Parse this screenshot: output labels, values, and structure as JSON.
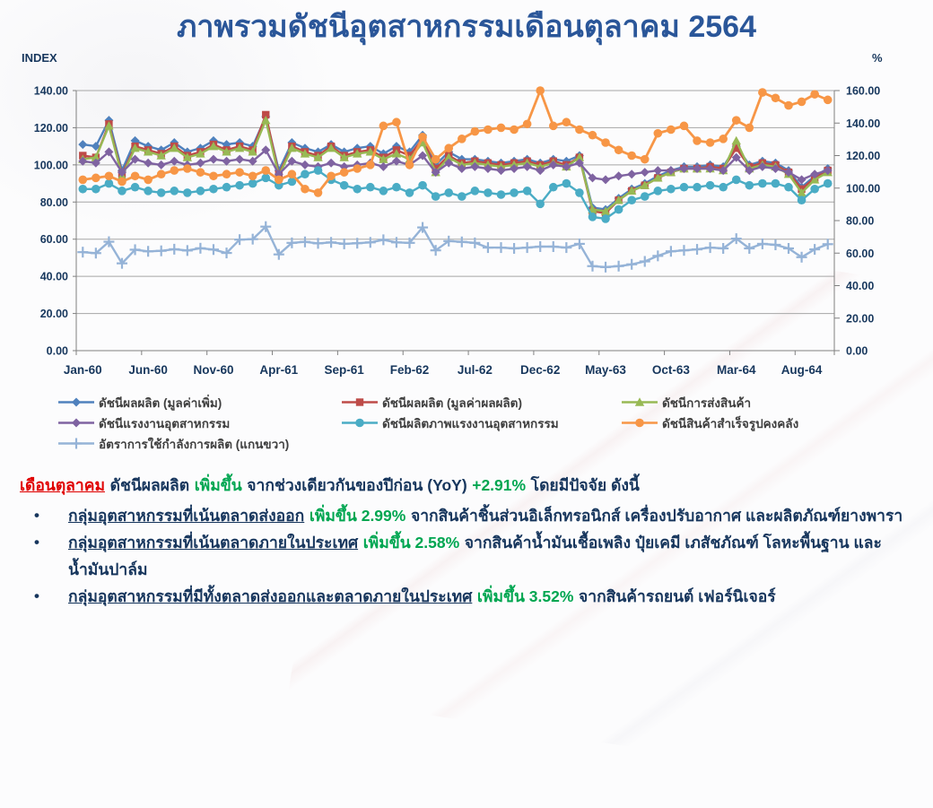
{
  "title": "ภาพรวมดัชนีอุตสาหกรรมเดือนตุลาคม 2564",
  "chart": {
    "left_axis_title": "INDEX",
    "right_axis_title": "%",
    "left_ticks": [
      "140.00",
      "120.00",
      "100.00",
      "80.00",
      "60.00",
      "40.00",
      "20.00",
      "0.00"
    ],
    "right_ticks": [
      "160.00",
      "140.00",
      "120.00",
      "100.00",
      "80.00",
      "60.00",
      "40.00",
      "20.00",
      "0.00"
    ],
    "x_tick_labels": [
      "Jan-60",
      "Jun-60",
      "Nov-60",
      "Apr-61",
      "Sep-61",
      "Feb-62",
      "Jul-62",
      "Dec-62",
      "May-63",
      "Oct-63",
      "Mar-64",
      "Aug-64"
    ]
  },
  "chart_data": {
    "type": "line",
    "title": "ภาพรวมดัชนีอุตสาหกรรมเดือนตุลาคม 2564",
    "xlabel": "",
    "ylabel_left": "INDEX",
    "ylabel_right": "%",
    "ylim_left": [
      0,
      140
    ],
    "ylim_right": [
      0,
      160
    ],
    "grid": true,
    "legend_position": "bottom",
    "x": [
      "Jan-60",
      "Feb-60",
      "Mar-60",
      "Apr-60",
      "May-60",
      "Jun-60",
      "Jul-60",
      "Aug-60",
      "Sep-60",
      "Oct-60",
      "Nov-60",
      "Dec-60",
      "Jan-61",
      "Feb-61",
      "Mar-61",
      "Apr-61",
      "May-61",
      "Jun-61",
      "Jul-61",
      "Aug-61",
      "Sep-61",
      "Oct-61",
      "Nov-61",
      "Dec-61",
      "Jan-62",
      "Feb-62",
      "Mar-62",
      "Apr-62",
      "May-62",
      "Jun-62",
      "Jul-62",
      "Aug-62",
      "Sep-62",
      "Oct-62",
      "Nov-62",
      "Dec-62",
      "Jan-63",
      "Feb-63",
      "Mar-63",
      "Apr-63",
      "May-63",
      "Jun-63",
      "Jul-63",
      "Aug-63",
      "Sep-63",
      "Oct-63",
      "Nov-63",
      "Dec-63",
      "Jan-64",
      "Feb-64",
      "Mar-64",
      "Apr-64",
      "May-64",
      "Jun-64",
      "Jul-64",
      "Aug-64",
      "Sep-64",
      "Oct-64"
    ],
    "series": [
      {
        "name": "ดัชนีผลผลิต (มูลค่าเพิ่ม)",
        "color": "#4F81BD",
        "marker": "diamond",
        "axis": "left",
        "values": [
          111,
          110,
          124,
          97,
          113,
          110,
          108,
          112,
          107,
          109,
          113,
          111,
          112,
          110,
          126,
          97,
          112,
          109,
          107,
          111,
          107,
          109,
          110,
          106,
          110,
          107,
          116,
          100,
          107,
          103,
          103,
          102,
          101,
          102,
          103,
          101,
          103,
          102,
          105,
          77,
          76,
          82,
          87,
          90,
          94,
          97,
          99,
          99,
          100,
          99,
          110,
          100,
          102,
          101,
          97,
          88,
          94,
          98
        ]
      },
      {
        "name": "ดัชนีผลผลิต (มูลค่าผลผลิต)",
        "color": "#BE4B48",
        "marker": "square",
        "axis": "left",
        "values": [
          105,
          104,
          122,
          95,
          110,
          108,
          106,
          110,
          105,
          107,
          111,
          108,
          110,
          108,
          127,
          95,
          110,
          107,
          105,
          110,
          105,
          107,
          108,
          104,
          108,
          105,
          114,
          98,
          105,
          101,
          102,
          101,
          100,
          101,
          102,
          100,
          102,
          100,
          104,
          75,
          74,
          81,
          86,
          89,
          93,
          96,
          98,
          98,
          99,
          98,
          109,
          99,
          101,
          100,
          96,
          87,
          93,
          97
        ]
      },
      {
        "name": "ดัชนีการส่งสินค้า",
        "color": "#98B954",
        "marker": "triangle",
        "axis": "left",
        "values": [
          103,
          104,
          121,
          94,
          109,
          107,
          105,
          109,
          104,
          106,
          110,
          107,
          109,
          107,
          124,
          94,
          109,
          106,
          104,
          109,
          104,
          106,
          107,
          103,
          106,
          103,
          112,
          96,
          104,
          100,
          101,
          100,
          99,
          100,
          101,
          99,
          101,
          99,
          104,
          76,
          75,
          81,
          86,
          89,
          93,
          96,
          98,
          98,
          98,
          97,
          113,
          98,
          100,
          99,
          95,
          85,
          92,
          96
        ]
      },
      {
        "name": "ดัชนีแรงงานอุตสาหกรรม",
        "color": "#7F63A1",
        "marker": "diamond",
        "axis": "left",
        "values": [
          102,
          101,
          107,
          96,
          103,
          101,
          100,
          102,
          100,
          101,
          103,
          102,
          103,
          102,
          108,
          95,
          102,
          100,
          99,
          101,
          99,
          100,
          101,
          99,
          102,
          100,
          105,
          96,
          101,
          98,
          99,
          98,
          97,
          98,
          99,
          97,
          100,
          99,
          101,
          93,
          92,
          94,
          95,
          96,
          97,
          97,
          98,
          98,
          98,
          97,
          104,
          97,
          99,
          98,
          96,
          92,
          95,
          97
        ]
      },
      {
        "name": "ดัชนีผลิตภาพแรงงานอุตสาหกรรม",
        "color": "#4AACC5",
        "marker": "circle",
        "axis": "left",
        "values": [
          87,
          87,
          90,
          86,
          88,
          86,
          85,
          86,
          85,
          86,
          87,
          88,
          89,
          90,
          93,
          89,
          91,
          95,
          97,
          92,
          89,
          87,
          88,
          86,
          88,
          85,
          89,
          83,
          85,
          83,
          86,
          85,
          84,
          85,
          86,
          79,
          88,
          90,
          85,
          72,
          71,
          76,
          81,
          83,
          86,
          87,
          88,
          88,
          89,
          88,
          92,
          89,
          90,
          90,
          88,
          81,
          87,
          90
        ]
      },
      {
        "name": "ดัชนีสินค้าสำเร็จรูปคงคลัง",
        "color": "#F79646",
        "marker": "circle",
        "axis": "left",
        "values": [
          92,
          93,
          94,
          91,
          94,
          92,
          95,
          97,
          98,
          96,
          94,
          95,
          96,
          94,
          97,
          92,
          95,
          87,
          85,
          94,
          96,
          98,
          100,
          121,
          123,
          100,
          115,
          103,
          109,
          114,
          118,
          119,
          120,
          119,
          122,
          140,
          121,
          123,
          119,
          116,
          112,
          108,
          105,
          103,
          117,
          119,
          121,
          113,
          112,
          114,
          124,
          120,
          139,
          136,
          132,
          134,
          138,
          135
        ]
      },
      {
        "name": "อัตราการใช้กำลังการผลิต (แกนขวา)",
        "color": "#95B3D7",
        "marker": "plus",
        "axis": "right",
        "values": [
          60.6,
          60.0,
          67.0,
          53.7,
          62.1,
          61.1,
          61.4,
          62.4,
          61.6,
          63.0,
          62.2,
          60.1,
          68.3,
          68.6,
          76.3,
          59.2,
          66.3,
          66.9,
          66.0,
          66.6,
          65.7,
          66.1,
          66.6,
          68.2,
          66.6,
          66.3,
          75.8,
          61.7,
          67.4,
          66.9,
          66.3,
          63.4,
          63.4,
          62.9,
          63.4,
          64.0,
          64.0,
          63.4,
          65.7,
          52.0,
          51.4,
          52.0,
          53.1,
          54.9,
          58.3,
          61.1,
          61.7,
          62.3,
          63.4,
          62.9,
          68.9,
          62.9,
          65.7,
          65.1,
          62.9,
          57.5,
          62.3,
          65.5
        ]
      }
    ]
  },
  "commentary": {
    "lead": {
      "month": "เดือนตุลาคม",
      "t1": "ดัชนีผลผลิต",
      "up": "เพิ่มขึ้น",
      "t2": "จากช่วงเดียวกันของปีก่อน (YoY)",
      "pct": "+2.91%",
      "t3": "โดยมีปัจจัย ดังนี้"
    },
    "bullets": [
      {
        "head": "กลุ่มอุตสาหกรรมที่เน้นตลาดส่งออก",
        "up": "เพิ่มขึ้น 2.99%",
        "tail": "จากสินค้าชิ้นส่วนอิเล็กทรอนิกส์ เครื่องปรับอากาศ และผลิตภัณฑ์ยางพารา"
      },
      {
        "head": "กลุ่มอุตสาหกรรมที่เน้นตลาดภายในประเทศ",
        "up": "เพิ่มขึ้น 2.58%",
        "tail": "จากสินค้าน้ำมันเชื้อเพลิง ปุ๋ยเคมี เภสัชภัณฑ์ โลหะพื้นฐาน และน้ำมันปาล์ม"
      },
      {
        "head": "กลุ่มอุตสาหกรรมที่มีทั้งตลาดส่งออกและตลาดภายในประเทศ",
        "up": "เพิ่มขึ้น 3.52%",
        "tail": "จากสินค้ารถยนต์ เฟอร์นิเจอร์"
      }
    ]
  },
  "colors": {
    "title": "#2A5699",
    "body_text": "#17365D",
    "highlight_green": "#00A651",
    "highlight_red": "#E00000",
    "grid": "#A6A6A6",
    "axis": "#808080"
  }
}
